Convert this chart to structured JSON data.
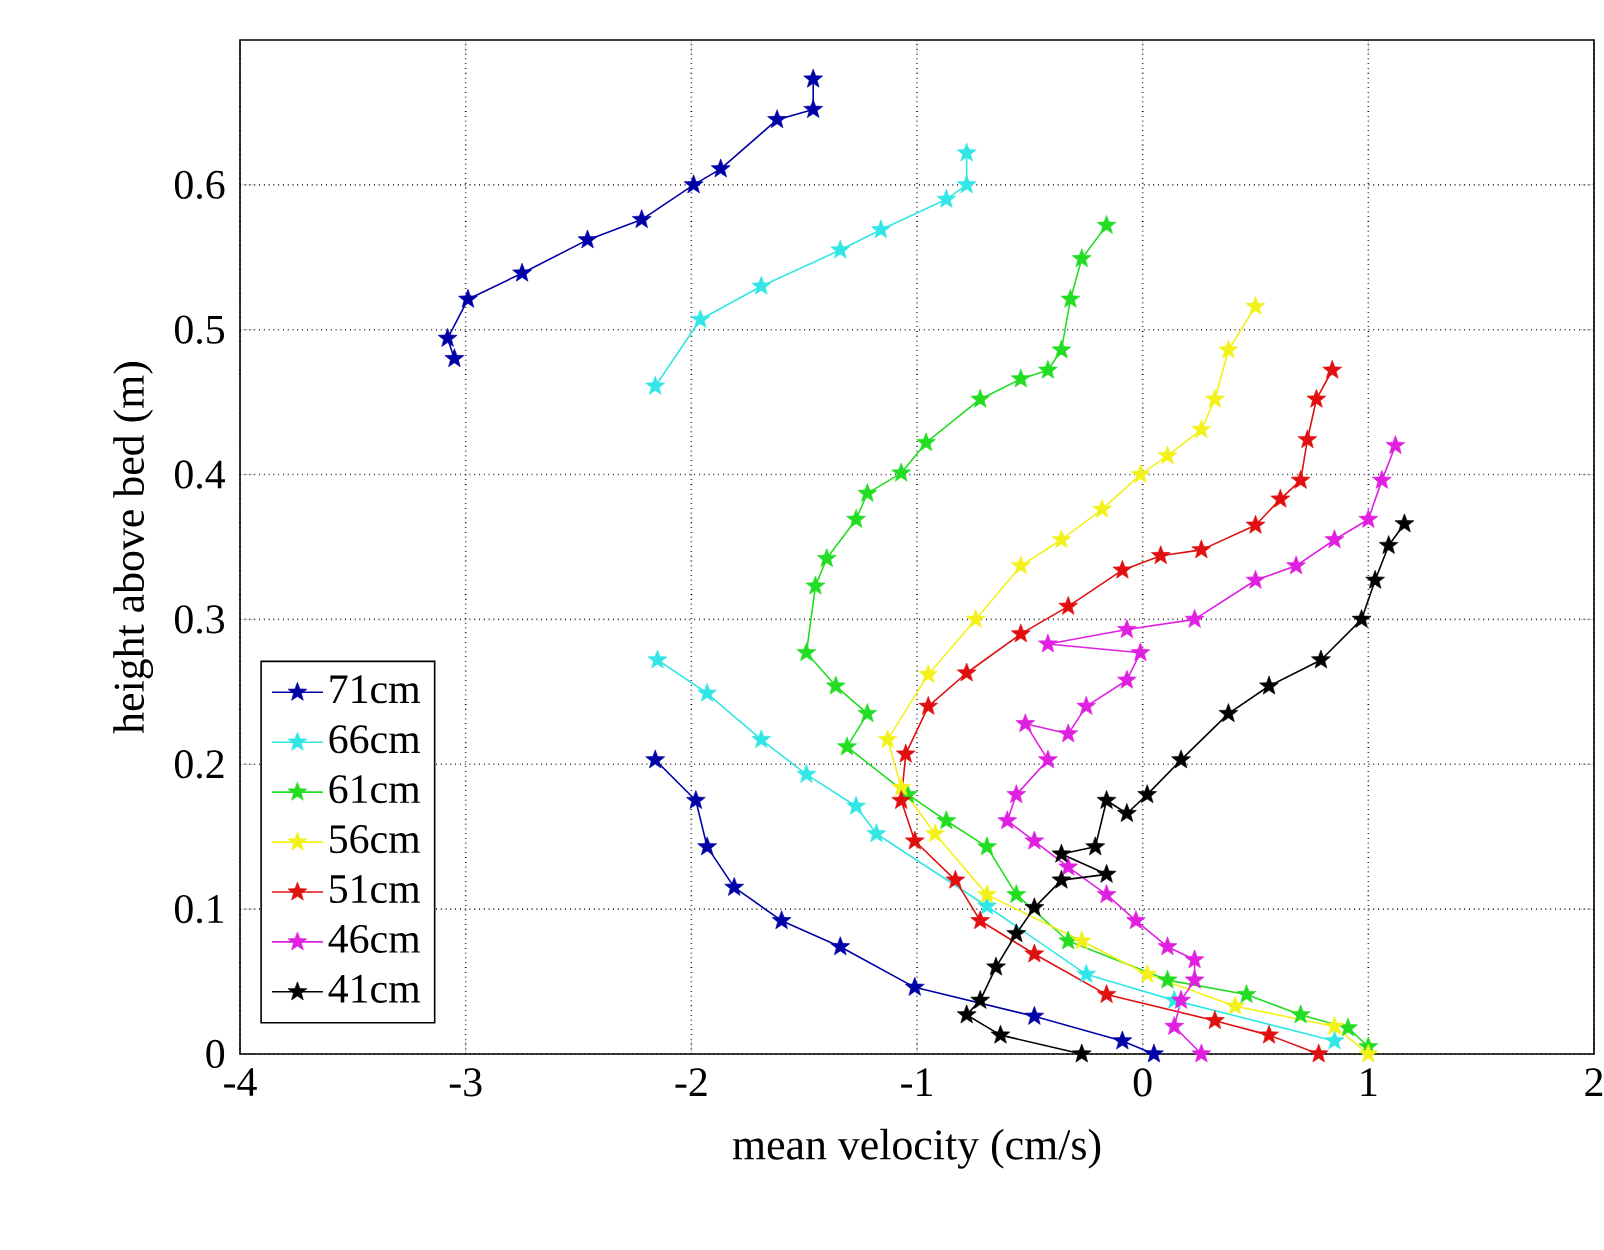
{
  "chart_data": {
    "type": "line",
    "xlabel": "mean velocity (cm/s)",
    "ylabel": "height above bed (m)",
    "xlim": [
      -4,
      2
    ],
    "ylim": [
      0,
      0.7
    ],
    "xticks": [
      -4,
      -3,
      -2,
      -1,
      0,
      1,
      2
    ],
    "yticks": [
      0,
      0.1,
      0.2,
      0.3,
      0.4,
      0.5,
      0.6
    ],
    "grid": true,
    "legend": "left",
    "marker": "star",
    "line_style": "solid",
    "series": [
      {
        "name": "71cm",
        "color": "#0000a8",
        "x": [
          -1.46,
          -1.46,
          -1.62,
          -1.87,
          -1.99,
          -2.22,
          -2.46,
          -2.75,
          -2.99,
          -3.08,
          -3.05,
          null,
          -2.16,
          -1.98,
          -1.93,
          -1.81,
          -1.6,
          -1.34,
          -1.01,
          -0.48,
          -0.09,
          0.05
        ],
        "values": [
          0.673,
          0.652,
          0.645,
          0.611,
          0.6,
          0.576,
          0.562,
          0.539,
          0.521,
          0.494,
          0.48,
          null,
          0.203,
          0.175,
          0.143,
          0.115,
          0.092,
          0.074,
          0.046,
          0.026,
          0.009,
          0.0
        ]
      },
      {
        "name": "66cm",
        "color": "#33e6e6",
        "x": [
          -0.78,
          -0.78,
          -0.87,
          -1.16,
          -1.34,
          -1.69,
          -1.96,
          -2.16,
          null,
          -2.15,
          -1.93,
          -1.69,
          -1.49,
          -1.27,
          -1.18,
          -0.69,
          -0.25,
          0.14,
          0.85,
          null
        ],
        "values": [
          0.622,
          0.6,
          0.59,
          0.569,
          0.555,
          0.53,
          0.507,
          0.461,
          null,
          0.272,
          0.249,
          0.217,
          0.193,
          0.171,
          0.152,
          0.102,
          0.055,
          0.037,
          0.009,
          null
        ]
      },
      {
        "name": "61cm",
        "color": "#22dd22",
        "x": [
          -0.16,
          -0.27,
          -0.32,
          -0.36,
          -0.42,
          -0.54,
          -0.72,
          -0.96,
          -1.07,
          -1.22,
          -1.27,
          -1.4,
          -1.45,
          -1.49,
          -1.36,
          -1.22,
          -1.31,
          -1.04,
          -0.87,
          -0.69,
          -0.56,
          -0.33,
          0.11,
          0.46,
          0.7,
          0.91,
          1.0
        ],
        "values": [
          0.572,
          0.549,
          0.521,
          0.486,
          0.472,
          0.466,
          0.452,
          0.422,
          0.401,
          0.387,
          0.369,
          0.342,
          0.323,
          0.277,
          0.254,
          0.235,
          0.212,
          0.179,
          0.161,
          0.143,
          0.11,
          0.078,
          0.051,
          0.041,
          0.027,
          0.018,
          0.005
        ]
      },
      {
        "name": "56cm",
        "color": "#f2f21a",
        "x": [
          0.5,
          0.38,
          0.32,
          0.26,
          0.11,
          -0.01,
          -0.18,
          -0.36,
          -0.54,
          -0.74,
          -0.95,
          -1.13,
          -1.07,
          -0.92,
          -0.69,
          -0.27,
          0.02,
          0.41,
          0.85,
          1.0
        ],
        "values": [
          0.516,
          0.486,
          0.452,
          0.431,
          0.413,
          0.4,
          0.376,
          0.355,
          0.337,
          0.3,
          0.262,
          0.217,
          0.184,
          0.152,
          0.11,
          0.078,
          0.055,
          0.033,
          0.019,
          0.0
        ]
      },
      {
        "name": "51cm",
        "color": "#e01010",
        "x": [
          0.84,
          0.77,
          0.73,
          0.7,
          0.61,
          0.5,
          0.26,
          0.08,
          -0.09,
          -0.33,
          -0.54,
          -0.78,
          -0.95,
          -1.05,
          -1.07,
          -1.01,
          -0.83,
          -0.72,
          -0.48,
          -0.16,
          0.32,
          0.56,
          0.78
        ],
        "values": [
          0.472,
          0.452,
          0.424,
          0.396,
          0.383,
          0.365,
          0.348,
          0.344,
          0.334,
          0.309,
          0.29,
          0.263,
          0.24,
          0.207,
          0.175,
          0.147,
          0.12,
          0.092,
          0.069,
          0.041,
          0.023,
          0.013,
          0.0
        ]
      },
      {
        "name": "46cm",
        "color": "#e020e0",
        "x": [
          1.12,
          1.06,
          1.0,
          0.85,
          0.68,
          0.5,
          0.23,
          -0.07,
          -0.42,
          -0.01,
          -0.07,
          -0.25,
          -0.33,
          -0.52,
          -0.42,
          -0.56,
          -0.6,
          -0.48,
          -0.33,
          -0.16,
          -0.03,
          0.11,
          0.23,
          0.23,
          0.17,
          0.14,
          0.26
        ],
        "values": [
          0.42,
          0.396,
          0.369,
          0.355,
          0.337,
          0.327,
          0.3,
          0.293,
          0.283,
          0.277,
          0.258,
          0.24,
          0.221,
          0.228,
          0.203,
          0.179,
          0.161,
          0.147,
          0.129,
          0.11,
          0.092,
          0.074,
          0.065,
          0.051,
          0.037,
          0.019,
          0.0
        ]
      },
      {
        "name": "41cm",
        "color": "#000000",
        "x": [
          1.16,
          1.09,
          1.03,
          0.97,
          0.79,
          0.56,
          0.38,
          0.17,
          0.02,
          -0.07,
          -0.16,
          -0.21,
          -0.36,
          -0.16,
          -0.36,
          -0.48,
          -0.56,
          -0.65,
          -0.72,
          -0.78,
          -0.63,
          -0.27
        ],
        "values": [
          0.366,
          0.351,
          0.327,
          0.3,
          0.272,
          0.254,
          0.235,
          0.203,
          0.179,
          0.166,
          0.175,
          0.143,
          0.138,
          0.124,
          0.12,
          0.101,
          0.083,
          0.06,
          0.037,
          0.027,
          0.013,
          0.0
        ]
      }
    ]
  }
}
